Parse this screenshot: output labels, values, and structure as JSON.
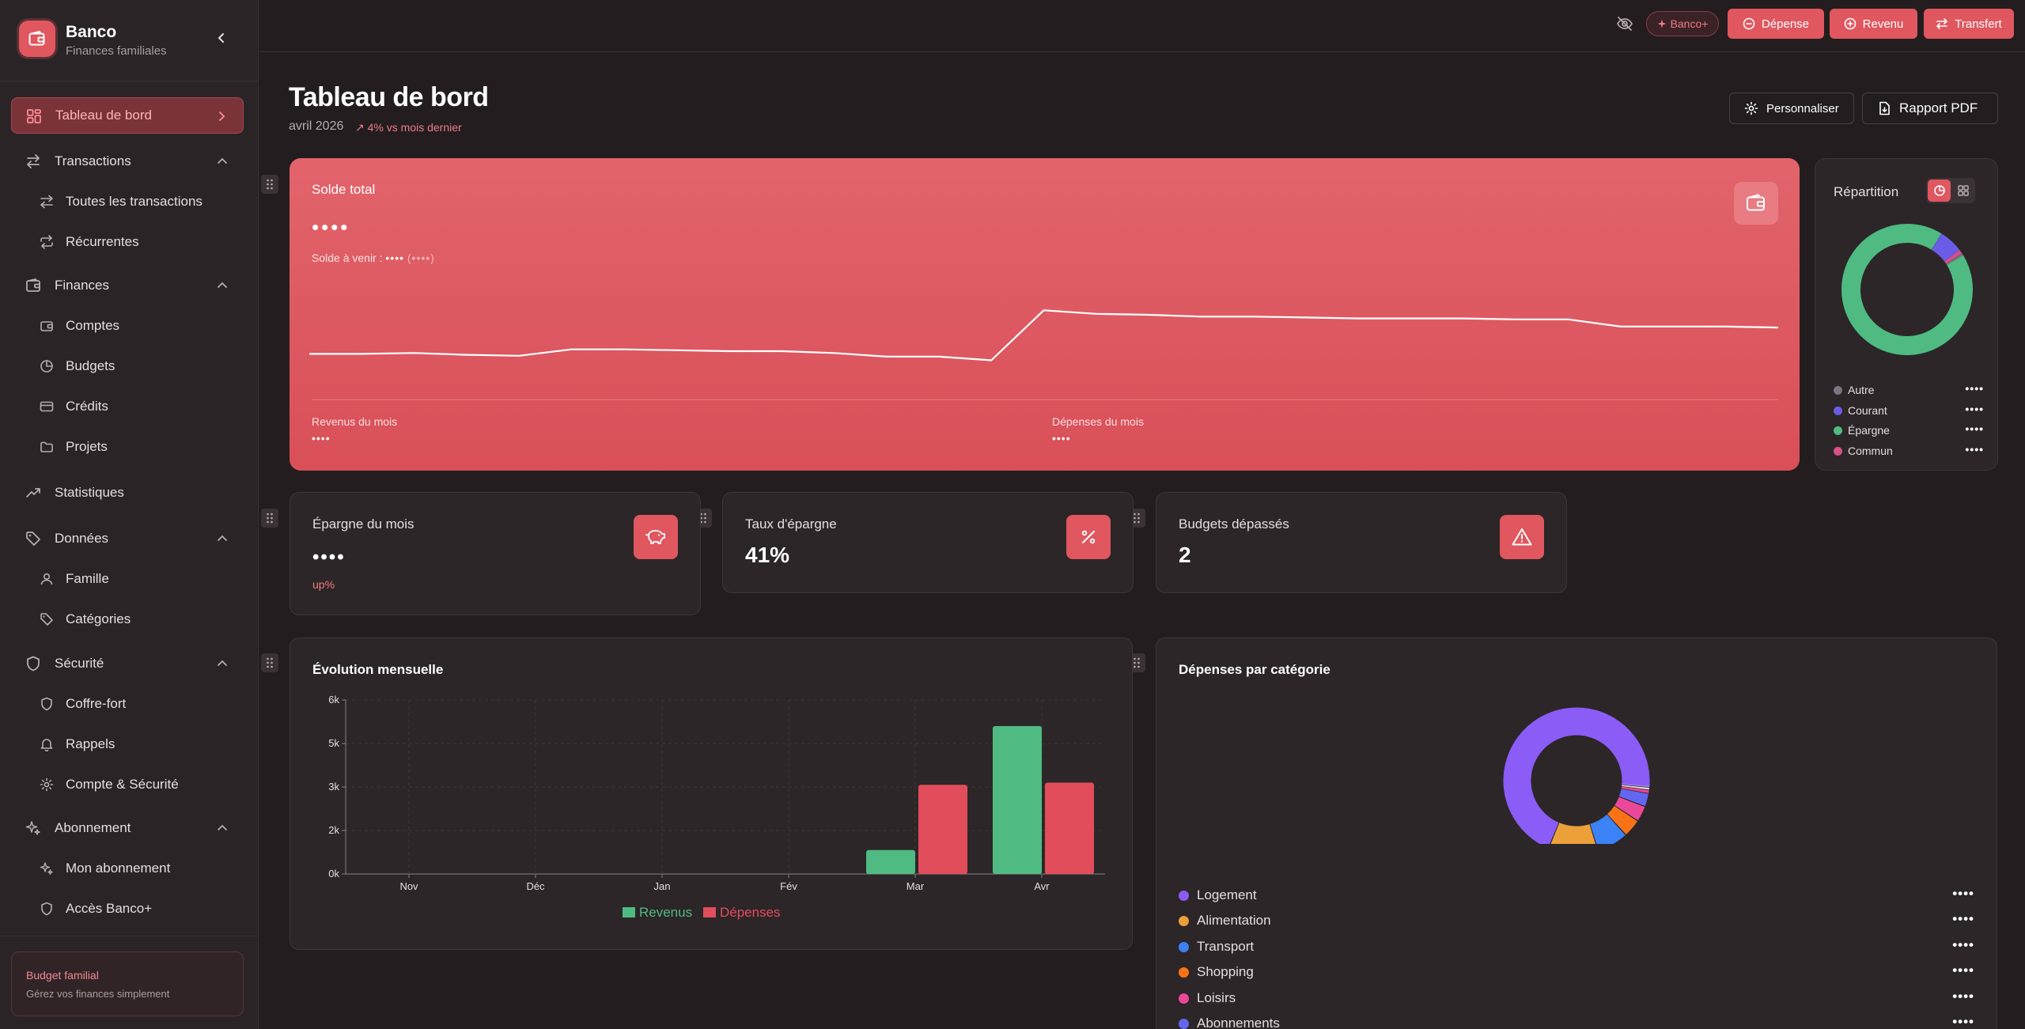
{
  "brand": {
    "name": "Banco",
    "subtitle": "Finances familiales"
  },
  "nav": {
    "dashboard": "Tableau de bord",
    "transactions": "Transactions",
    "all_transactions": "Toutes les transactions",
    "recurring": "Récurrentes",
    "finances": "Finances",
    "accounts": "Comptes",
    "budgets": "Budgets",
    "credits": "Crédits",
    "projects": "Projets",
    "statistics": "Statistiques",
    "data": "Données",
    "family": "Famille",
    "categories": "Catégories",
    "security": "Sécurité",
    "vault": "Coffre-fort",
    "reminders": "Rappels",
    "account_security": "Compte & Sécurité",
    "subscription": "Abonnement",
    "my_subscription": "Mon abonnement",
    "banco_plus_access": "Accès Banco+"
  },
  "sidebar_card": {
    "title": "Budget familial",
    "subtitle": "Gérez vos finances simplement"
  },
  "topbar": {
    "banco_plus": "Banco+",
    "expense": "Dépense",
    "income": "Revenu",
    "transfer": "Transfert"
  },
  "header": {
    "title": "Tableau de bord",
    "date": "avril 2026",
    "trend": "4% vs mois dernier",
    "customize": "Personnaliser",
    "pdf_report": "Rapport PDF"
  },
  "hero": {
    "title": "Solde total",
    "balance": "••••",
    "upcoming_label": "Solde à venir :",
    "upcoming_value": "••••",
    "upcoming_paren": "(••••)",
    "income_label": "Revenus du mois",
    "income_value": "••••",
    "expenses_label": "Dépenses du mois",
    "expenses_value": "••••",
    "trend": [
      0.63,
      0.63,
      0.62,
      0.64,
      0.65,
      0.58,
      0.58,
      0.59,
      0.6,
      0.6,
      0.62,
      0.66,
      0.66,
      0.7,
      0.15,
      0.19,
      0.2,
      0.22,
      0.22,
      0.23,
      0.24,
      0.24,
      0.24,
      0.25,
      0.25,
      0.33,
      0.33,
      0.33,
      0.34
    ]
  },
  "repartition": {
    "title": "Répartition",
    "items": [
      {
        "name": "Autre",
        "value": "••••",
        "color": "#7a7380",
        "share": 0.005
      },
      {
        "name": "Courant",
        "value": "••••",
        "color": "#6b5ce7",
        "share": 0.06
      },
      {
        "name": "Épargne",
        "value": "••••",
        "color": "#4fbb82",
        "share": 0.925
      },
      {
        "name": "Commun",
        "value": "••••",
        "color": "#d94f8a",
        "share": 0.01
      }
    ]
  },
  "stats": {
    "savings_title": "Épargne du mois",
    "savings_value": "••••",
    "savings_sub": "up%",
    "rate_title": "Taux d'épargne",
    "rate_value": "41%",
    "budgets_title": "Budgets dépassés",
    "budgets_value": "2"
  },
  "evolution": {
    "title": "Évolution mensuelle"
  },
  "chart_data": {
    "type": "bar",
    "title": "Évolution mensuelle",
    "categories": [
      "Nov",
      "Déc",
      "Jan",
      "Fév",
      "Mar",
      "Avr"
    ],
    "y_ticks": [
      "0k",
      "2k",
      "3k",
      "5k",
      "6k"
    ],
    "ylim": [
      0,
      6500
    ],
    "series": [
      {
        "name": "Revenus",
        "color": "#4fbb82",
        "values": [
          0,
          0,
          0,
          0,
          1100,
          5400
        ]
      },
      {
        "name": "Dépenses",
        "color": "#e24d5b",
        "values": [
          0,
          0,
          0,
          0,
          3100,
          3200
        ]
      }
    ],
    "legend": "bottom"
  },
  "depenses": {
    "title": "Dépenses par catégorie",
    "items": [
      {
        "name": "Logement",
        "value": "••••",
        "color": "#8b5cf6",
        "share": 0.7
      },
      {
        "name": "Alimentation",
        "value": "••••",
        "color": "#eba03a",
        "share": 0.11
      },
      {
        "name": "Transport",
        "value": "••••",
        "color": "#3b82f6",
        "share": 0.07
      },
      {
        "name": "Shopping",
        "value": "••••",
        "color": "#f97316",
        "share": 0.04
      },
      {
        "name": "Loisirs",
        "value": "••••",
        "color": "#ec4899",
        "share": 0.035
      },
      {
        "name": "Abonnements",
        "value": "••••",
        "color": "#6366f1",
        "share": 0.03
      }
    ]
  }
}
